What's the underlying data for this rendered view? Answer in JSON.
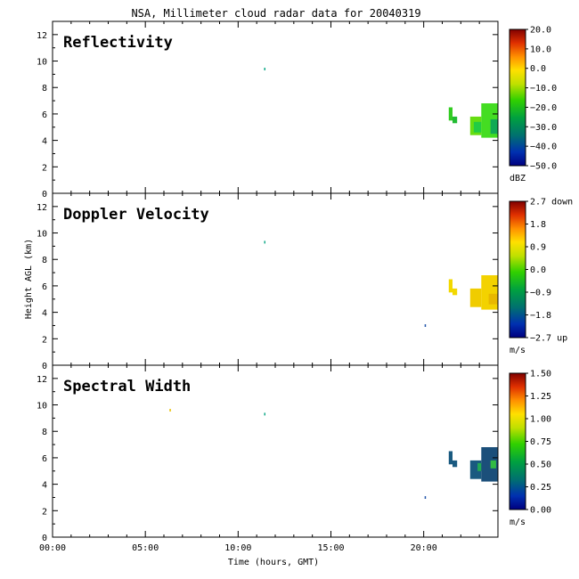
{
  "title": "NSA, Millimeter cloud radar data for 20040319",
  "ylabel": "Height AGL (km)",
  "xlabel": "Time (hours, GMT)",
  "chart_data": [
    {
      "type": "heatmap",
      "panel_label": "Reflectivity",
      "x_range_hours": [
        0,
        24
      ],
      "ylim": [
        0,
        13
      ],
      "y_ticks": [
        "0",
        "2",
        "4",
        "6",
        "8",
        "10",
        "12"
      ],
      "colorbar": {
        "unit": "dBZ",
        "ticks": [
          "20.0",
          "10.0",
          "0.0",
          "−10.0",
          "−20.0",
          "−30.0",
          "−40.0",
          "−50.0"
        ]
      },
      "echoes": [
        {
          "t0": 21.35,
          "t1": 21.55,
          "h0": 5.5,
          "h1": 6.5,
          "color": "#33cc22"
        },
        {
          "t0": 21.55,
          "t1": 21.8,
          "h0": 5.3,
          "h1": 5.8,
          "color": "#22bb33"
        },
        {
          "t0": 22.5,
          "t1": 23.1,
          "h0": 4.4,
          "h1": 5.8,
          "color": "#66dd11"
        },
        {
          "t0": 22.7,
          "t1": 23.1,
          "h0": 4.6,
          "h1": 5.4,
          "color": "#22cc44"
        },
        {
          "t0": 23.1,
          "t1": 24.0,
          "h0": 4.2,
          "h1": 6.8,
          "color": "#44dd22"
        },
        {
          "t0": 23.6,
          "t1": 24.0,
          "h0": 4.5,
          "h1": 5.6,
          "color": "#11aa55"
        },
        {
          "t0": 11.4,
          "t1": 11.45,
          "h0": 9.3,
          "h1": 9.5,
          "color": "#11aa88"
        }
      ]
    },
    {
      "type": "heatmap",
      "panel_label": "Doppler Velocity",
      "x_range_hours": [
        0,
        24
      ],
      "ylim": [
        0,
        13
      ],
      "y_ticks": [
        "0",
        "2",
        "4",
        "6",
        "8",
        "10",
        "12"
      ],
      "colorbar": {
        "unit": "m/s",
        "ticks": [
          "2.7 down",
          "1.8",
          "0.9",
          "0.0",
          "−0.9",
          "−1.8",
          "−2.7 up"
        ]
      },
      "echoes": [
        {
          "t0": 21.35,
          "t1": 21.55,
          "h0": 5.5,
          "h1": 6.5,
          "color": "#f2d800"
        },
        {
          "t0": 21.55,
          "t1": 21.8,
          "h0": 5.3,
          "h1": 5.8,
          "color": "#f2d800"
        },
        {
          "t0": 22.5,
          "t1": 23.1,
          "h0": 4.4,
          "h1": 5.8,
          "color": "#f0cc00"
        },
        {
          "t0": 23.1,
          "t1": 24.0,
          "h0": 4.2,
          "h1": 6.8,
          "color": "#f3d200"
        },
        {
          "t0": 23.5,
          "t1": 24.0,
          "h0": 4.6,
          "h1": 5.4,
          "color": "#e8b800"
        },
        {
          "t0": 20.05,
          "t1": 20.1,
          "h0": 2.9,
          "h1": 3.1,
          "color": "#2255aa"
        },
        {
          "t0": 11.4,
          "t1": 11.45,
          "h0": 9.2,
          "h1": 9.4,
          "color": "#11aa88"
        }
      ]
    },
    {
      "type": "heatmap",
      "panel_label": "Spectral Width",
      "x_range_hours": [
        0,
        24
      ],
      "ylim": [
        0,
        13
      ],
      "y_ticks": [
        "0",
        "2",
        "4",
        "6",
        "8",
        "10",
        "12"
      ],
      "x_ticks": [
        "00:00",
        "05:00",
        "10:00",
        "15:00",
        "20:00"
      ],
      "colorbar": {
        "unit": "m/s",
        "ticks": [
          "1.50",
          "1.25",
          "1.00",
          "0.75",
          "0.50",
          "0.25",
          "0.00"
        ]
      },
      "echoes": [
        {
          "t0": 21.35,
          "t1": 21.55,
          "h0": 5.5,
          "h1": 6.5,
          "color": "#1a5a80"
        },
        {
          "t0": 21.55,
          "t1": 21.8,
          "h0": 5.3,
          "h1": 5.8,
          "color": "#1a5a80"
        },
        {
          "t0": 22.5,
          "t1": 23.1,
          "h0": 4.4,
          "h1": 5.8,
          "color": "#1a5a80"
        },
        {
          "t0": 22.9,
          "t1": 23.3,
          "h0": 5.0,
          "h1": 5.6,
          "color": "#22aa55"
        },
        {
          "t0": 23.1,
          "t1": 24.0,
          "h0": 4.2,
          "h1": 6.8,
          "color": "#1b4f7a"
        },
        {
          "t0": 23.6,
          "t1": 23.9,
          "h0": 5.2,
          "h1": 5.8,
          "color": "#33bb44"
        },
        {
          "t0": 20.05,
          "t1": 20.1,
          "h0": 2.9,
          "h1": 3.1,
          "color": "#2255aa"
        },
        {
          "t0": 11.4,
          "t1": 11.45,
          "h0": 9.2,
          "h1": 9.4,
          "color": "#11aa88"
        },
        {
          "t0": 6.3,
          "t1": 6.35,
          "h0": 9.5,
          "h1": 9.7,
          "color": "#e8c000"
        }
      ]
    }
  ]
}
